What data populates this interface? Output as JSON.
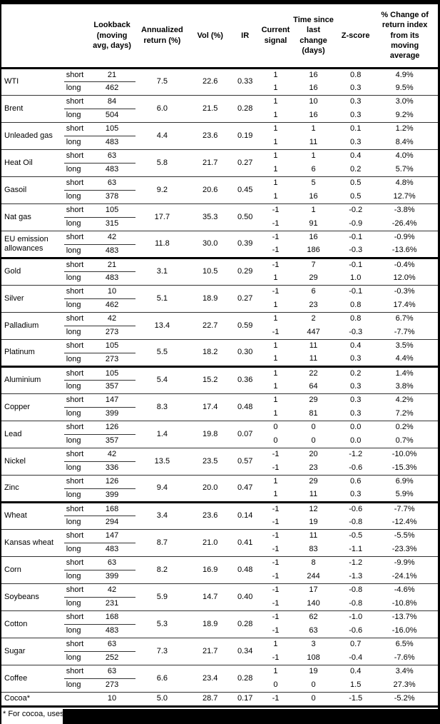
{
  "table": {
    "columns": [
      {
        "key": "name",
        "label": ""
      },
      {
        "key": "leg",
        "label": ""
      },
      {
        "key": "lookback",
        "label": "Lookback\n(moving\navg, days)"
      },
      {
        "key": "annret",
        "label": "Annualized\nreturn (%)"
      },
      {
        "key": "vol",
        "label": "Vol (%)"
      },
      {
        "key": "ir",
        "label": "IR"
      },
      {
        "key": "signal",
        "label": "Current\nsignal"
      },
      {
        "key": "time",
        "label": "Time since\nlast change\n(days)"
      },
      {
        "key": "zscore",
        "label": "Z-score"
      },
      {
        "key": "change",
        "label": "% Change of\nreturn index\nfrom its\nmoving\naverage"
      }
    ],
    "rows": [
      {
        "name": "WTI",
        "annualized_return": "7.5",
        "vol": "22.6",
        "ir": "0.33",
        "section_end": false,
        "legs": [
          {
            "leg": "short",
            "lookback": "21",
            "signal": "1",
            "time": "16",
            "zscore": "0.8",
            "change": "4.9%"
          },
          {
            "leg": "long",
            "lookback": "462",
            "signal": "1",
            "time": "16",
            "zscore": "0.3",
            "change": "9.5%"
          }
        ]
      },
      {
        "name": "Brent",
        "annualized_return": "6.0",
        "vol": "21.5",
        "ir": "0.28",
        "section_end": false,
        "legs": [
          {
            "leg": "short",
            "lookback": "84",
            "signal": "1",
            "time": "10",
            "zscore": "0.3",
            "change": "3.0%"
          },
          {
            "leg": "long",
            "lookback": "504",
            "signal": "1",
            "time": "16",
            "zscore": "0.3",
            "change": "9.2%"
          }
        ]
      },
      {
        "name": "Unleaded gas",
        "annualized_return": "4.4",
        "vol": "23.6",
        "ir": "0.19",
        "section_end": false,
        "legs": [
          {
            "leg": "short",
            "lookback": "105",
            "signal": "1",
            "time": "1",
            "zscore": "0.1",
            "change": "1.2%"
          },
          {
            "leg": "long",
            "lookback": "483",
            "signal": "1",
            "time": "11",
            "zscore": "0.3",
            "change": "8.4%"
          }
        ]
      },
      {
        "name": "Heat Oil",
        "annualized_return": "5.8",
        "vol": "21.7",
        "ir": "0.27",
        "section_end": false,
        "legs": [
          {
            "leg": "short",
            "lookback": "63",
            "signal": "1",
            "time": "1",
            "zscore": "0.4",
            "change": "4.0%"
          },
          {
            "leg": "long",
            "lookback": "483",
            "signal": "1",
            "time": "6",
            "zscore": "0.2",
            "change": "5.7%"
          }
        ]
      },
      {
        "name": "Gasoil",
        "annualized_return": "9.2",
        "vol": "20.6",
        "ir": "0.45",
        "section_end": false,
        "legs": [
          {
            "leg": "short",
            "lookback": "63",
            "signal": "1",
            "time": "5",
            "zscore": "0.5",
            "change": "4.8%"
          },
          {
            "leg": "long",
            "lookback": "378",
            "signal": "1",
            "time": "16",
            "zscore": "0.5",
            "change": "12.7%"
          }
        ]
      },
      {
        "name": "Nat gas",
        "annualized_return": "17.7",
        "vol": "35.3",
        "ir": "0.50",
        "section_end": false,
        "legs": [
          {
            "leg": "short",
            "lookback": "105",
            "signal": "-1",
            "time": "1",
            "zscore": "-0.2",
            "change": "-3.8%"
          },
          {
            "leg": "long",
            "lookback": "315",
            "signal": "-1",
            "time": "91",
            "zscore": "-0.9",
            "change": "-26.4%"
          }
        ]
      },
      {
        "name": "EU emission allowances",
        "annualized_return": "11.8",
        "vol": "30.0",
        "ir": "0.39",
        "section_end": true,
        "legs": [
          {
            "leg": "short",
            "lookback": "42",
            "signal": "-1",
            "time": "16",
            "zscore": "-0.1",
            "change": "-0.9%"
          },
          {
            "leg": "long",
            "lookback": "483",
            "signal": "-1",
            "time": "186",
            "zscore": "-0.3",
            "change": "-13.6%"
          }
        ]
      },
      {
        "name": "Gold",
        "annualized_return": "3.1",
        "vol": "10.5",
        "ir": "0.29",
        "section_end": false,
        "legs": [
          {
            "leg": "short",
            "lookback": "21",
            "signal": "-1",
            "time": "7",
            "zscore": "-0.1",
            "change": "-0.4%"
          },
          {
            "leg": "long",
            "lookback": "483",
            "signal": "1",
            "time": "29",
            "zscore": "1.0",
            "change": "12.0%"
          }
        ]
      },
      {
        "name": "Silver",
        "annualized_return": "5.1",
        "vol": "18.9",
        "ir": "0.27",
        "section_end": false,
        "legs": [
          {
            "leg": "short",
            "lookback": "10",
            "signal": "-1",
            "time": "6",
            "zscore": "-0.1",
            "change": "-0.3%"
          },
          {
            "leg": "long",
            "lookback": "462",
            "signal": "1",
            "time": "23",
            "zscore": "0.8",
            "change": "17.4%"
          }
        ]
      },
      {
        "name": "Palladium",
        "annualized_return": "13.4",
        "vol": "22.7",
        "ir": "0.59",
        "section_end": false,
        "legs": [
          {
            "leg": "short",
            "lookback": "42",
            "signal": "1",
            "time": "2",
            "zscore": "0.8",
            "change": "6.7%"
          },
          {
            "leg": "long",
            "lookback": "273",
            "signal": "-1",
            "time": "447",
            "zscore": "-0.3",
            "change": "-7.7%"
          }
        ]
      },
      {
        "name": "Platinum",
        "annualized_return": "5.5",
        "vol": "18.2",
        "ir": "0.30",
        "section_end": true,
        "legs": [
          {
            "leg": "short",
            "lookback": "105",
            "signal": "1",
            "time": "11",
            "zscore": "0.4",
            "change": "3.5%"
          },
          {
            "leg": "long",
            "lookback": "273",
            "signal": "1",
            "time": "11",
            "zscore": "0.3",
            "change": "4.4%"
          }
        ]
      },
      {
        "name": "Aluminium",
        "annualized_return": "5.4",
        "vol": "15.2",
        "ir": "0.36",
        "section_end": false,
        "legs": [
          {
            "leg": "short",
            "lookback": "105",
            "signal": "1",
            "time": "22",
            "zscore": "0.2",
            "change": "1.4%"
          },
          {
            "leg": "long",
            "lookback": "357",
            "signal": "1",
            "time": "64",
            "zscore": "0.3",
            "change": "3.8%"
          }
        ]
      },
      {
        "name": "Copper",
        "annualized_return": "8.3",
        "vol": "17.4",
        "ir": "0.48",
        "section_end": false,
        "legs": [
          {
            "leg": "short",
            "lookback": "147",
            "signal": "1",
            "time": "29",
            "zscore": "0.3",
            "change": "4.2%"
          },
          {
            "leg": "long",
            "lookback": "399",
            "signal": "1",
            "time": "81",
            "zscore": "0.3",
            "change": "7.2%"
          }
        ]
      },
      {
        "name": "Lead",
        "annualized_return": "1.4",
        "vol": "19.8",
        "ir": "0.07",
        "section_end": false,
        "legs": [
          {
            "leg": "short",
            "lookback": "126",
            "signal": "0",
            "time": "0",
            "zscore": "0.0",
            "change": "0.2%"
          },
          {
            "leg": "long",
            "lookback": "357",
            "signal": "0",
            "time": "0",
            "zscore": "0.0",
            "change": "0.7%"
          }
        ]
      },
      {
        "name": "Nickel",
        "annualized_return": "13.5",
        "vol": "23.5",
        "ir": "0.57",
        "section_end": false,
        "legs": [
          {
            "leg": "short",
            "lookback": "42",
            "signal": "-1",
            "time": "20",
            "zscore": "-1.2",
            "change": "-10.0%"
          },
          {
            "leg": "long",
            "lookback": "336",
            "signal": "-1",
            "time": "23",
            "zscore": "-0.6",
            "change": "-15.3%"
          }
        ]
      },
      {
        "name": "Zinc",
        "annualized_return": "9.4",
        "vol": "20.0",
        "ir": "0.47",
        "section_end": true,
        "legs": [
          {
            "leg": "short",
            "lookback": "126",
            "signal": "1",
            "time": "29",
            "zscore": "0.6",
            "change": "6.9%"
          },
          {
            "leg": "long",
            "lookback": "399",
            "signal": "1",
            "time": "11",
            "zscore": "0.3",
            "change": "5.9%"
          }
        ]
      },
      {
        "name": "Wheat",
        "annualized_return": "3.4",
        "vol": "23.6",
        "ir": "0.14",
        "section_end": false,
        "legs": [
          {
            "leg": "short",
            "lookback": "168",
            "signal": "-1",
            "time": "12",
            "zscore": "-0.6",
            "change": "-7.7%"
          },
          {
            "leg": "long",
            "lookback": "294",
            "signal": "-1",
            "time": "19",
            "zscore": "-0.8",
            "change": "-12.4%"
          }
        ]
      },
      {
        "name": "Kansas wheat",
        "annualized_return": "8.7",
        "vol": "21.0",
        "ir": "0.41",
        "section_end": false,
        "legs": [
          {
            "leg": "short",
            "lookback": "147",
            "signal": "-1",
            "time": "11",
            "zscore": "-0.5",
            "change": "-5.5%"
          },
          {
            "leg": "long",
            "lookback": "483",
            "signal": "-1",
            "time": "83",
            "zscore": "-1.1",
            "change": "-23.3%"
          }
        ]
      },
      {
        "name": "Corn",
        "annualized_return": "8.2",
        "vol": "16.9",
        "ir": "0.48",
        "section_end": false,
        "legs": [
          {
            "leg": "short",
            "lookback": "63",
            "signal": "-1",
            "time": "8",
            "zscore": "-1.2",
            "change": "-9.9%"
          },
          {
            "leg": "long",
            "lookback": "399",
            "signal": "-1",
            "time": "244",
            "zscore": "-1.3",
            "change": "-24.1%"
          }
        ]
      },
      {
        "name": "Soybeans",
        "annualized_return": "5.9",
        "vol": "14.7",
        "ir": "0.40",
        "section_end": false,
        "legs": [
          {
            "leg": "short",
            "lookback": "42",
            "signal": "-1",
            "time": "17",
            "zscore": "-0.8",
            "change": "-4.6%"
          },
          {
            "leg": "long",
            "lookback": "231",
            "signal": "-1",
            "time": "140",
            "zscore": "-0.8",
            "change": "-10.8%"
          }
        ]
      },
      {
        "name": "Cotton",
        "annualized_return": "5.3",
        "vol": "18.9",
        "ir": "0.28",
        "section_end": false,
        "legs": [
          {
            "leg": "short",
            "lookback": "168",
            "signal": "-1",
            "time": "62",
            "zscore": "-1.0",
            "change": "-13.7%"
          },
          {
            "leg": "long",
            "lookback": "483",
            "signal": "-1",
            "time": "63",
            "zscore": "-0.6",
            "change": "-16.0%"
          }
        ]
      },
      {
        "name": "Sugar",
        "annualized_return": "7.3",
        "vol": "21.7",
        "ir": "0.34",
        "section_end": false,
        "legs": [
          {
            "leg": "short",
            "lookback": "63",
            "signal": "1",
            "time": "3",
            "zscore": "0.7",
            "change": "6.5%"
          },
          {
            "leg": "long",
            "lookback": "252",
            "signal": "-1",
            "time": "108",
            "zscore": "-0.4",
            "change": "-7.6%"
          }
        ]
      },
      {
        "name": "Coffee",
        "annualized_return": "6.6",
        "vol": "23.4",
        "ir": "0.28",
        "section_end": false,
        "legs": [
          {
            "leg": "short",
            "lookback": "63",
            "signal": "1",
            "time": "19",
            "zscore": "0.4",
            "change": "3.4%"
          },
          {
            "leg": "long",
            "lookback": "273",
            "signal": "0",
            "time": "0",
            "zscore": "1.5",
            "change": "27.3%"
          }
        ]
      },
      {
        "name": "Cocoa*",
        "annualized_return": "5.0",
        "vol": "28.7",
        "ir": "0.17",
        "section_end": false,
        "no_bottom": true,
        "legs": [
          {
            "leg": "",
            "lookback": "10",
            "signal": "-1",
            "time": "0",
            "zscore": "-1.5",
            "change": "-5.2%"
          }
        ]
      }
    ]
  },
  "footnote": {
    "text": "* For cocoa, uses o"
  },
  "colors": {
    "background": "#ffffff",
    "text": "#000000",
    "border_heavy": "#000000",
    "border_light": "#333333",
    "redaction": "#000000"
  }
}
